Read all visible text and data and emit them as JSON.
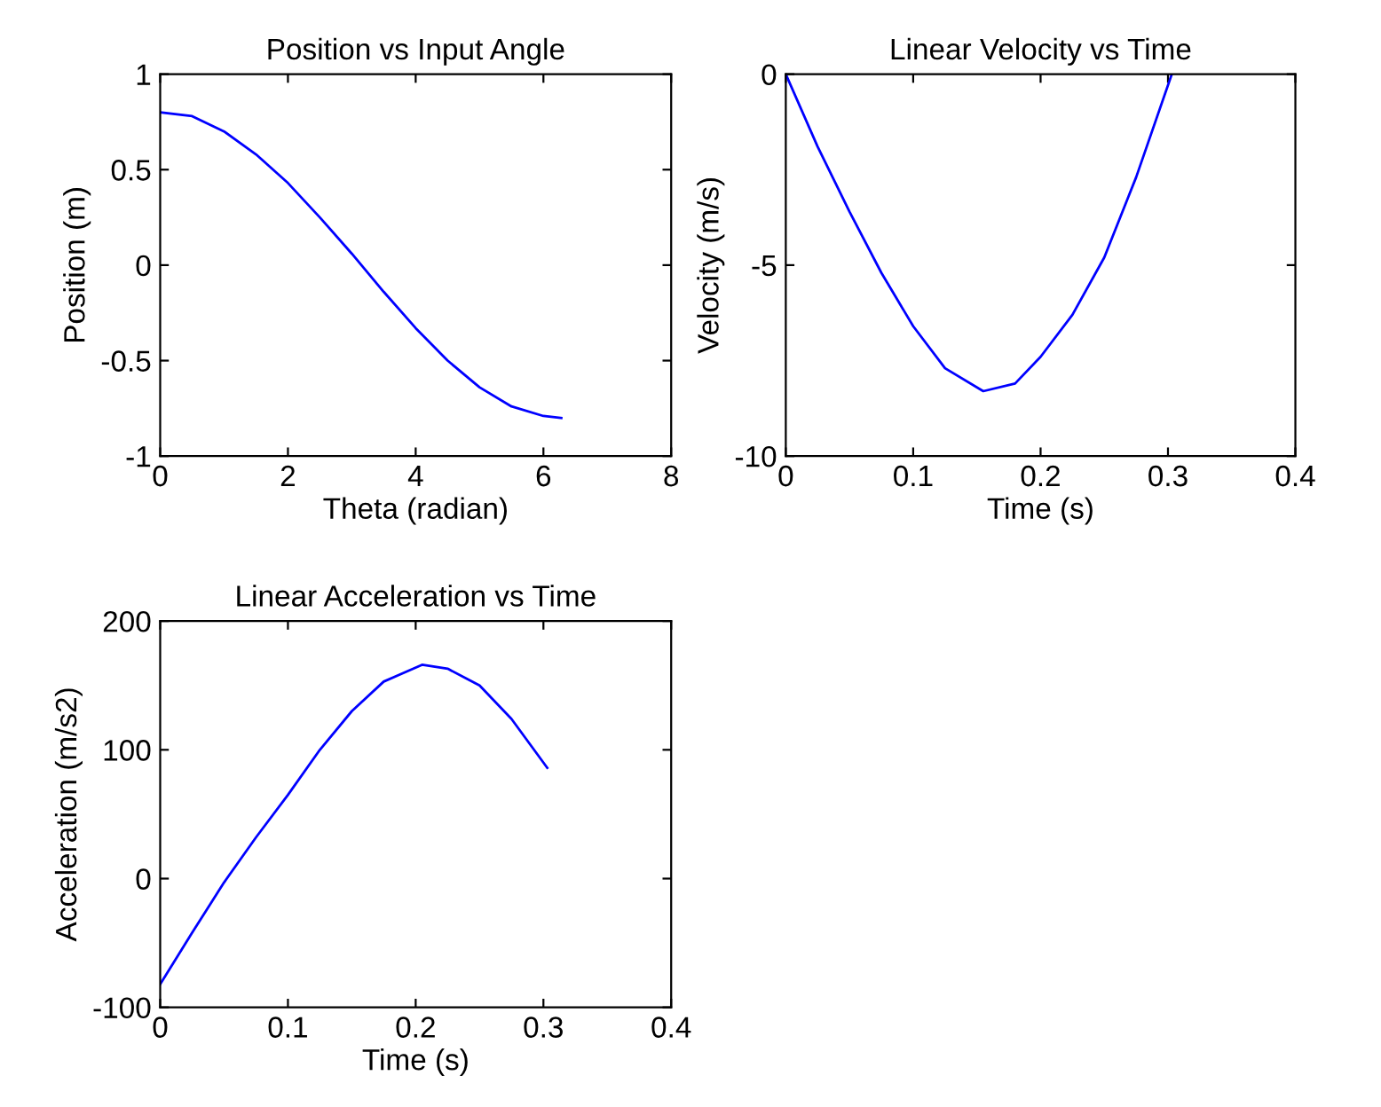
{
  "chart_data": [
    {
      "type": "line",
      "title": "Position vs Input Angle",
      "xlabel": "Theta (radian)",
      "ylabel": "Position (m)",
      "xlim": [
        0,
        8
      ],
      "ylim": [
        -1,
        1
      ],
      "xticks": [
        0,
        2,
        4,
        6,
        8
      ],
      "yticks": [
        -1,
        -0.5,
        0,
        0.5,
        1
      ],
      "grid": false,
      "legend": false,
      "series": [
        {
          "color": "#0000ff",
          "x": [
            0,
            0.5,
            1,
            1.5,
            2,
            2.5,
            3,
            3.5,
            4,
            4.5,
            5,
            5.5,
            6,
            6.28
          ],
          "values": [
            0.8,
            0.78,
            0.7,
            0.58,
            0.43,
            0.25,
            0.06,
            -0.14,
            -0.33,
            -0.5,
            -0.64,
            -0.74,
            -0.79,
            -0.8
          ]
        }
      ]
    },
    {
      "type": "line",
      "title": "Linear Velocity vs Time",
      "xlabel": "Time (s)",
      "ylabel": "Velocity (m/s)",
      "xlim": [
        0,
        0.4
      ],
      "ylim": [
        -10,
        0
      ],
      "xticks": [
        0,
        0.1,
        0.2,
        0.3,
        0.4
      ],
      "yticks": [
        -10,
        -5,
        0
      ],
      "grid": false,
      "legend": false,
      "series": [
        {
          "color": "#0000ff",
          "x": [
            0,
            0.025,
            0.05,
            0.075,
            0.1,
            0.125,
            0.155,
            0.18,
            0.2,
            0.225,
            0.25,
            0.275,
            0.303
          ],
          "values": [
            0,
            -1.9,
            -3.6,
            -5.2,
            -6.6,
            -7.7,
            -8.3,
            -8.1,
            -7.4,
            -6.3,
            -4.8,
            -2.7,
            0
          ]
        }
      ]
    },
    {
      "type": "line",
      "title": "Linear Acceleration vs Time",
      "xlabel": "Time (s)",
      "ylabel": "Acceleration (m/s2)",
      "xlim": [
        0,
        0.4
      ],
      "ylim": [
        -100,
        200
      ],
      "xticks": [
        0,
        0.1,
        0.2,
        0.3,
        0.4
      ],
      "yticks": [
        -100,
        0,
        100,
        200
      ],
      "grid": false,
      "legend": false,
      "series": [
        {
          "color": "#0000ff",
          "x": [
            0,
            0.025,
            0.05,
            0.075,
            0.1,
            0.125,
            0.15,
            0.175,
            0.205,
            0.225,
            0.25,
            0.275,
            0.303
          ],
          "values": [
            -82,
            -42,
            -3,
            32,
            65,
            100,
            130,
            153,
            166,
            163,
            150,
            124,
            86
          ]
        }
      ]
    }
  ]
}
